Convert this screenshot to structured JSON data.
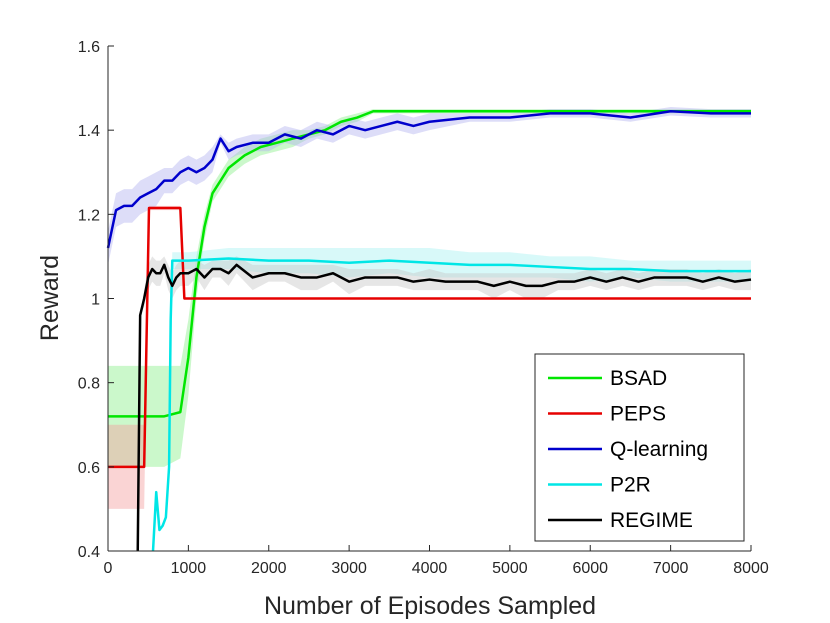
{
  "chart_data": {
    "type": "line",
    "title": "",
    "xlabel": "Number of Episodes Sampled",
    "ylabel": "Reward",
    "xlim": [
      0,
      8000
    ],
    "ylim": [
      0.4,
      1.6
    ],
    "xticks": [
      0,
      1000,
      2000,
      3000,
      4000,
      5000,
      6000,
      7000,
      8000
    ],
    "yticks": [
      0.4,
      0.6,
      0.8,
      1,
      1.2,
      1.4,
      1.6
    ],
    "xtick_labels": [
      "0",
      "1000",
      "2000",
      "3000",
      "4000",
      "5000",
      "6000",
      "7000",
      "8000"
    ],
    "ytick_labels": [
      "0.4",
      "0.6",
      "0.8",
      "1",
      "1.2",
      "1.4",
      "1.6"
    ],
    "grid": false,
    "legend_position": "bottom-right",
    "series": [
      {
        "name": "BSAD",
        "color": "#00e600",
        "band_color": "#8cf08c",
        "x": [
          0,
          700,
          900,
          1000,
          1100,
          1200,
          1300,
          1400,
          1500,
          1700,
          1900,
          2100,
          2300,
          2500,
          2700,
          2900,
          3100,
          3300,
          3500,
          4000,
          5000,
          6000,
          7000,
          8000
        ],
        "y": [
          0.72,
          0.72,
          0.73,
          0.86,
          1.05,
          1.17,
          1.25,
          1.28,
          1.31,
          1.34,
          1.36,
          1.37,
          1.38,
          1.39,
          1.4,
          1.42,
          1.43,
          1.445,
          1.445,
          1.445,
          1.445,
          1.445,
          1.445,
          1.445
        ],
        "band_upper": [
          0.84,
          0.84,
          0.84,
          0.95,
          1.1,
          1.2,
          1.27,
          1.3,
          1.33,
          1.36,
          1.38,
          1.39,
          1.4,
          1.4,
          1.41,
          1.43,
          1.44,
          1.45,
          1.45,
          1.45,
          1.45,
          1.45,
          1.45,
          1.45
        ],
        "band_lower": [
          0.6,
          0.6,
          0.62,
          0.77,
          1.0,
          1.14,
          1.23,
          1.26,
          1.29,
          1.32,
          1.34,
          1.35,
          1.36,
          1.38,
          1.39,
          1.41,
          1.42,
          1.44,
          1.44,
          1.44,
          1.44,
          1.44,
          1.44,
          1.44
        ]
      },
      {
        "name": "PEPS",
        "color": "#e60000",
        "band_color": "#f5a0a0",
        "x": [
          0,
          450,
          510,
          550,
          900,
          950,
          8000
        ],
        "y": [
          0.6,
          0.6,
          1.215,
          1.215,
          1.215,
          1.0,
          1.0
        ],
        "band_upper": [
          0.7,
          0.7,
          1.22,
          1.22,
          1.22,
          1.0,
          1.0
        ],
        "band_lower": [
          0.5,
          0.5,
          1.21,
          1.21,
          1.21,
          1.0,
          1.0
        ]
      },
      {
        "name": "Q-learning",
        "color": "#0000cc",
        "band_color": "#b4b4f0",
        "x": [
          0,
          100,
          200,
          300,
          400,
          500,
          600,
          700,
          800,
          900,
          1000,
          1100,
          1200,
          1300,
          1400,
          1500,
          1600,
          1800,
          2000,
          2200,
          2400,
          2600,
          2800,
          3000,
          3200,
          3400,
          3600,
          3800,
          4000,
          4500,
          5000,
          5500,
          6000,
          6500,
          7000,
          7500,
          8000
        ],
        "y": [
          1.12,
          1.21,
          1.22,
          1.22,
          1.24,
          1.25,
          1.26,
          1.28,
          1.28,
          1.3,
          1.31,
          1.3,
          1.31,
          1.33,
          1.38,
          1.35,
          1.36,
          1.37,
          1.37,
          1.39,
          1.38,
          1.4,
          1.39,
          1.41,
          1.4,
          1.41,
          1.42,
          1.41,
          1.42,
          1.43,
          1.43,
          1.44,
          1.44,
          1.43,
          1.445,
          1.44,
          1.44
        ],
        "band_upper": [
          1.16,
          1.25,
          1.26,
          1.26,
          1.28,
          1.29,
          1.3,
          1.31,
          1.31,
          1.33,
          1.34,
          1.33,
          1.34,
          1.36,
          1.39,
          1.37,
          1.38,
          1.39,
          1.39,
          1.41,
          1.4,
          1.42,
          1.41,
          1.43,
          1.42,
          1.43,
          1.44,
          1.43,
          1.44,
          1.44,
          1.44,
          1.45,
          1.45,
          1.44,
          1.455,
          1.45,
          1.45
        ],
        "band_lower": [
          1.08,
          1.17,
          1.18,
          1.18,
          1.2,
          1.21,
          1.22,
          1.25,
          1.25,
          1.27,
          1.28,
          1.27,
          1.28,
          1.3,
          1.37,
          1.33,
          1.34,
          1.35,
          1.35,
          1.37,
          1.36,
          1.38,
          1.37,
          1.39,
          1.38,
          1.39,
          1.4,
          1.39,
          1.4,
          1.42,
          1.42,
          1.43,
          1.43,
          1.42,
          1.435,
          1.43,
          1.43
        ]
      },
      {
        "name": "P2R",
        "color": "#00e6e6",
        "band_color": "#a8f2f2",
        "x": [
          560,
          600,
          640,
          680,
          720,
          760,
          780,
          800,
          850,
          1000,
          1500,
          2000,
          2500,
          3000,
          3500,
          4000,
          4500,
          5000,
          5500,
          6000,
          6500,
          7000,
          7500,
          8000
        ],
        "y": [
          0.4,
          0.54,
          0.45,
          0.46,
          0.48,
          0.6,
          0.95,
          1.09,
          1.09,
          1.09,
          1.095,
          1.09,
          1.09,
          1.085,
          1.09,
          1.085,
          1.08,
          1.08,
          1.075,
          1.07,
          1.07,
          1.065,
          1.065,
          1.065
        ],
        "band_upper": [
          0.4,
          0.54,
          0.45,
          0.46,
          0.48,
          0.6,
          0.95,
          1.11,
          1.11,
          1.11,
          1.12,
          1.12,
          1.12,
          1.12,
          1.12,
          1.12,
          1.11,
          1.11,
          1.1,
          1.1,
          1.09,
          1.09,
          1.09,
          1.09
        ],
        "band_lower": [
          0.4,
          0.54,
          0.45,
          0.46,
          0.48,
          0.6,
          0.95,
          1.07,
          1.07,
          1.07,
          1.07,
          1.06,
          1.06,
          1.05,
          1.06,
          1.05,
          1.05,
          1.05,
          1.05,
          1.04,
          1.05,
          1.04,
          1.04,
          1.04
        ]
      },
      {
        "name": "REGIME",
        "color": "#000000",
        "band_color": "#c8c8c8",
        "x": [
          370,
          400,
          450,
          500,
          550,
          600,
          650,
          700,
          750,
          800,
          850,
          900,
          1000,
          1100,
          1200,
          1300,
          1400,
          1500,
          1600,
          1800,
          2000,
          2200,
          2400,
          2600,
          2800,
          3000,
          3200,
          3400,
          3600,
          3800,
          4000,
          4200,
          4400,
          4600,
          4800,
          5000,
          5200,
          5400,
          5600,
          5800,
          6000,
          6200,
          6400,
          6600,
          6800,
          7000,
          7200,
          7400,
          7600,
          7800,
          8000
        ],
        "y": [
          0.4,
          0.96,
          1.0,
          1.05,
          1.07,
          1.06,
          1.06,
          1.08,
          1.05,
          1.03,
          1.05,
          1.06,
          1.06,
          1.07,
          1.05,
          1.07,
          1.07,
          1.06,
          1.08,
          1.05,
          1.06,
          1.06,
          1.05,
          1.05,
          1.06,
          1.04,
          1.05,
          1.05,
          1.05,
          1.04,
          1.045,
          1.04,
          1.04,
          1.04,
          1.03,
          1.04,
          1.03,
          1.03,
          1.04,
          1.04,
          1.05,
          1.04,
          1.05,
          1.04,
          1.05,
          1.05,
          1.05,
          1.04,
          1.05,
          1.04,
          1.045
        ],
        "band_upper": [
          0.4,
          0.96,
          1.02,
          1.08,
          1.1,
          1.09,
          1.09,
          1.1,
          1.08,
          1.06,
          1.08,
          1.09,
          1.09,
          1.09,
          1.08,
          1.09,
          1.09,
          1.09,
          1.1,
          1.08,
          1.08,
          1.08,
          1.08,
          1.08,
          1.08,
          1.07,
          1.07,
          1.07,
          1.07,
          1.06,
          1.07,
          1.06,
          1.06,
          1.06,
          1.06,
          1.06,
          1.06,
          1.06,
          1.06,
          1.06,
          1.07,
          1.06,
          1.07,
          1.06,
          1.07,
          1.07,
          1.07,
          1.06,
          1.07,
          1.06,
          1.07
        ],
        "band_lower": [
          0.4,
          0.96,
          0.98,
          1.02,
          1.04,
          1.03,
          1.03,
          1.06,
          1.02,
          1.0,
          1.02,
          1.03,
          1.03,
          1.05,
          1.02,
          1.05,
          1.05,
          1.03,
          1.06,
          1.02,
          1.04,
          1.04,
          1.02,
          1.02,
          1.04,
          1.01,
          1.03,
          1.03,
          1.03,
          1.02,
          1.02,
          1.02,
          1.02,
          1.02,
          1.0,
          1.02,
          1.0,
          1.0,
          1.02,
          1.02,
          1.03,
          1.02,
          1.03,
          1.02,
          1.03,
          1.03,
          1.03,
          1.02,
          1.03,
          1.02,
          1.02
        ]
      }
    ]
  }
}
